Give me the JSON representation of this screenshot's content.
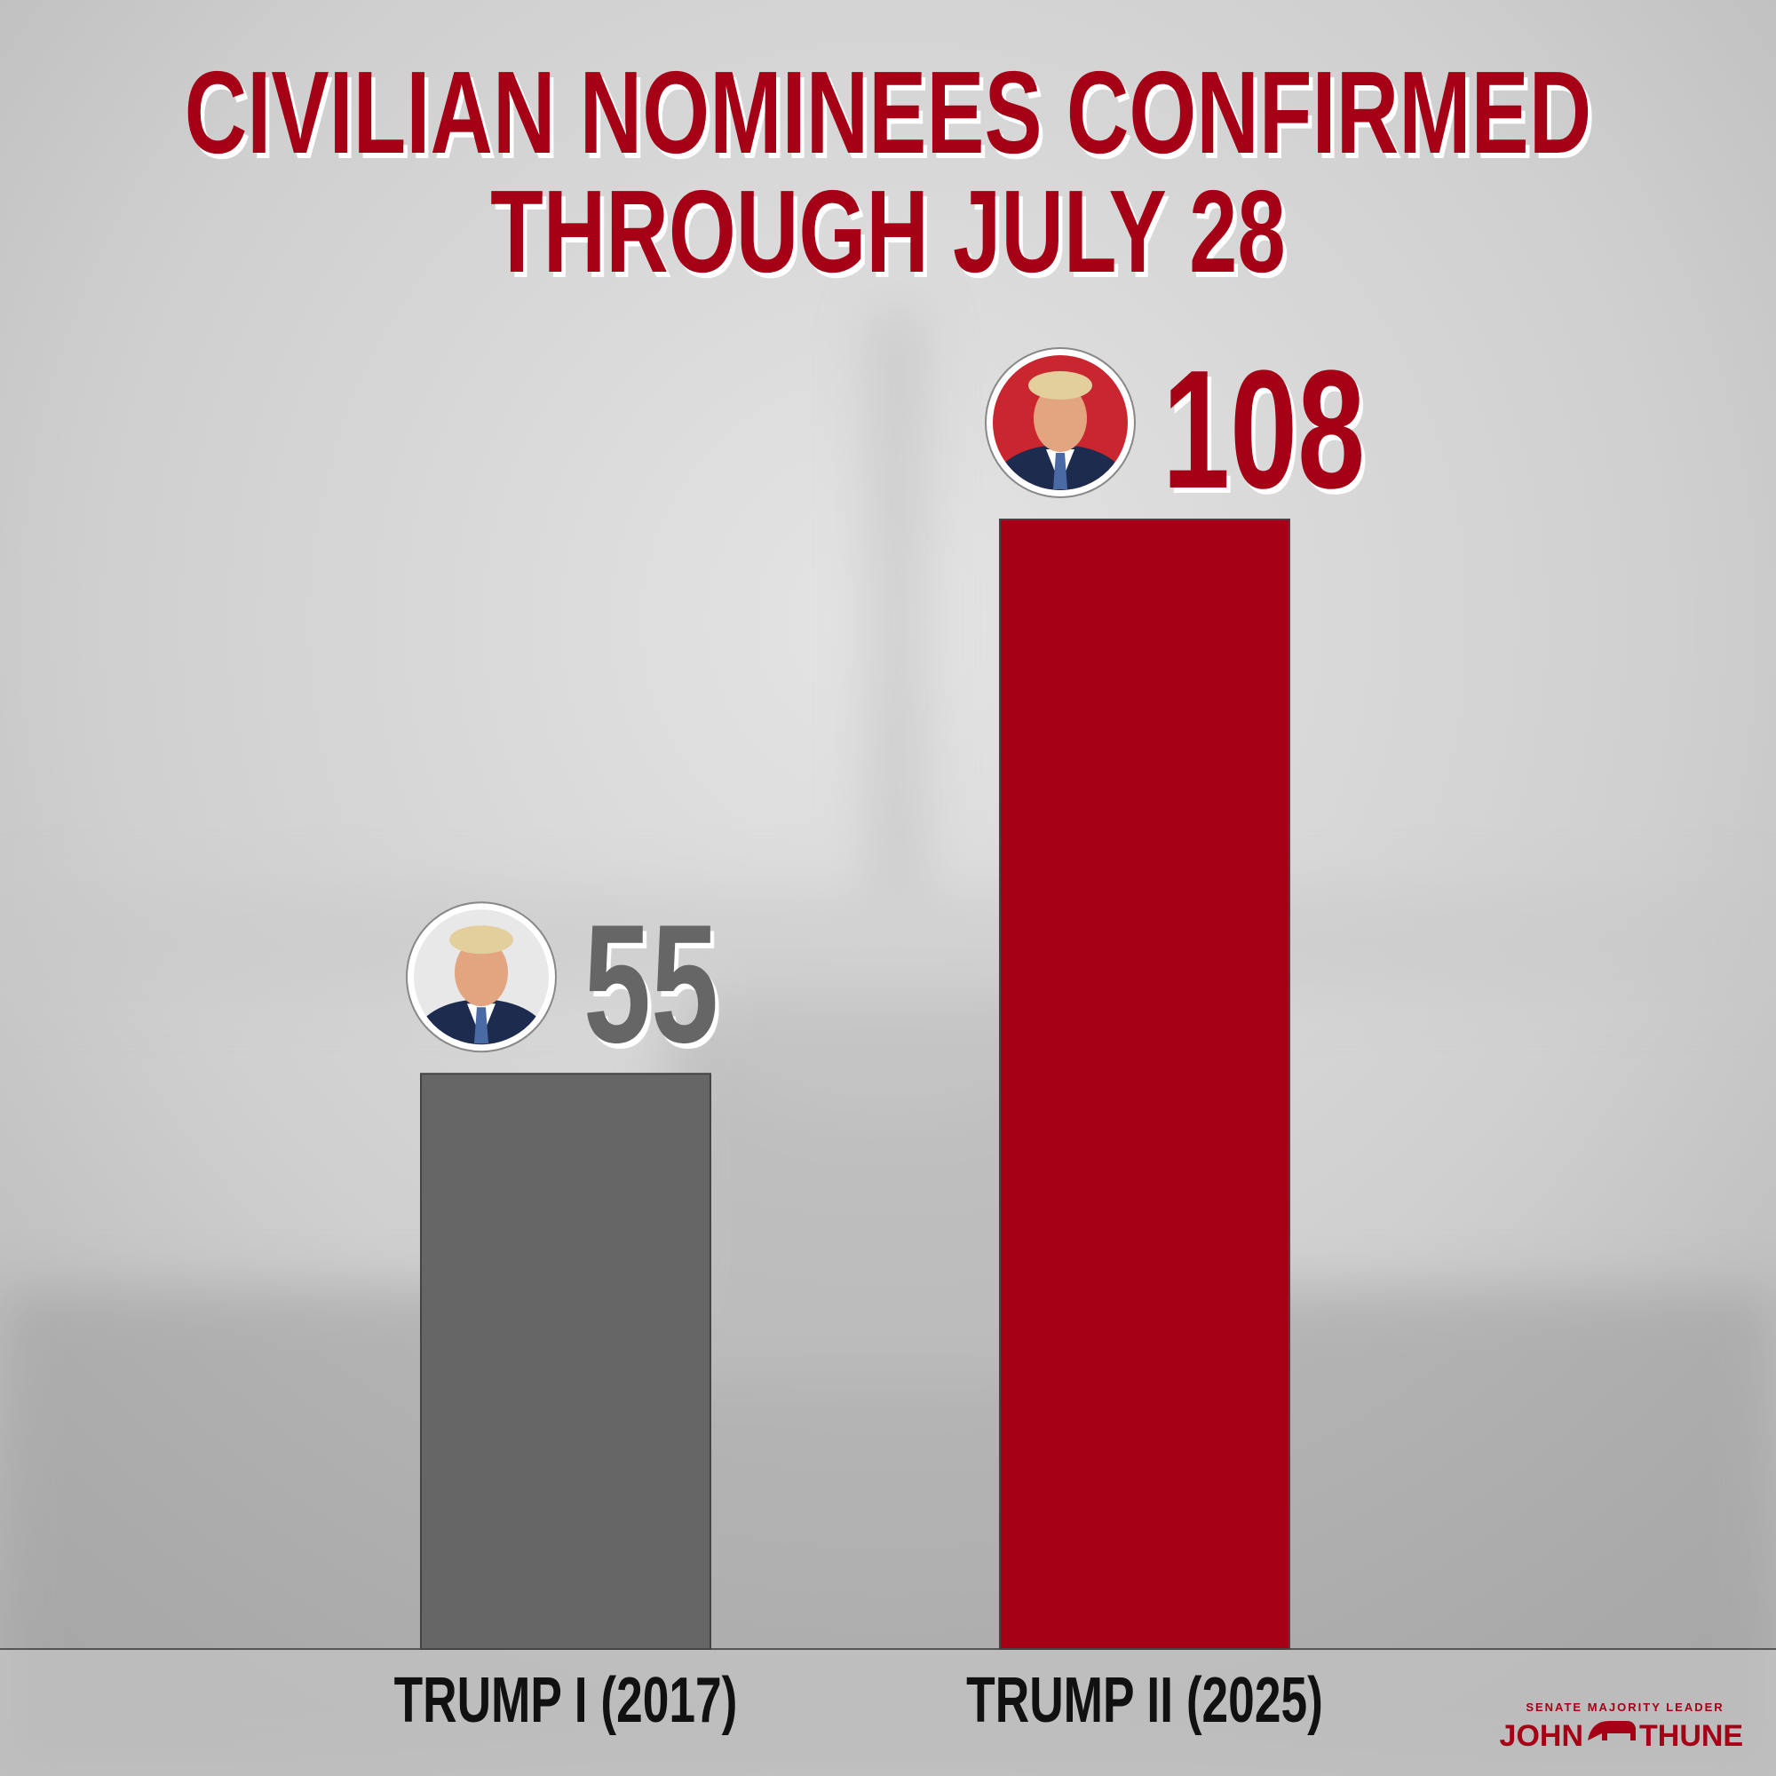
{
  "chart_data": {
    "type": "bar",
    "title": [
      "CIVILIAN NOMINEES CONFIRMED",
      "THROUGH JULY 28"
    ],
    "categories": [
      "TRUMP I (2017)",
      "TRUMP II (2025)"
    ],
    "values": [
      55,
      108
    ],
    "colors": [
      "#666666",
      "#a50016"
    ],
    "branding": {
      "label": "SENATE MAJORITY LEADER",
      "name_left": "JOHN",
      "name_right": "THUNE"
    }
  }
}
